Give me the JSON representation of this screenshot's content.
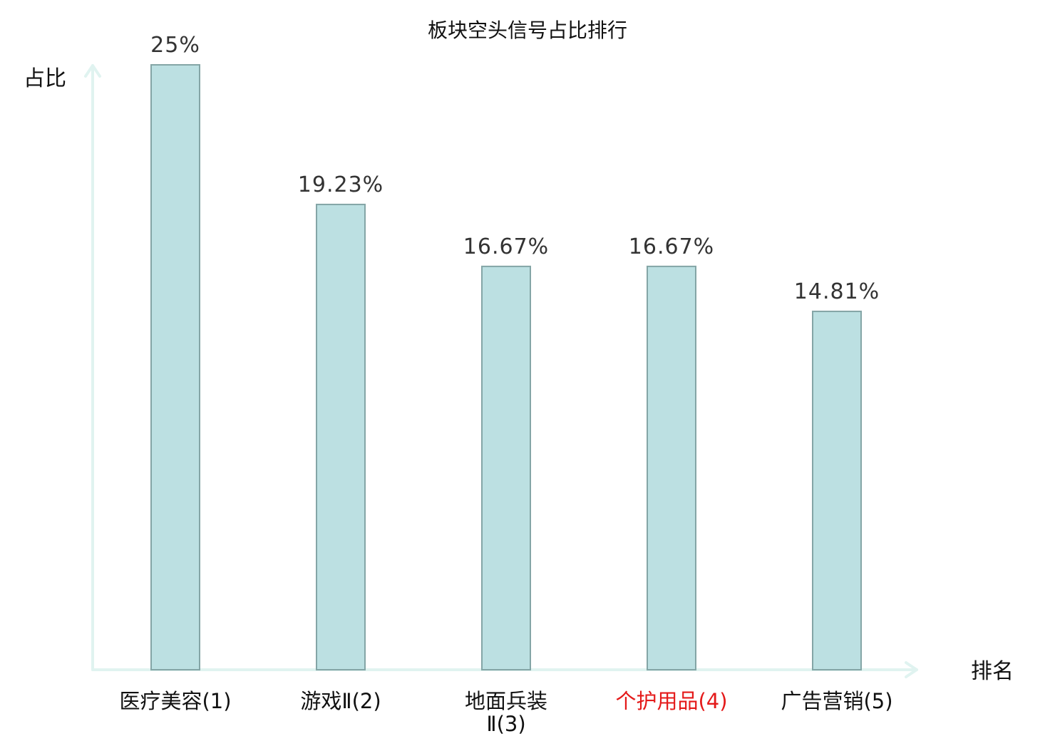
{
  "chart_data": {
    "type": "bar",
    "title": "板块空头信号占比排行",
    "xlabel": "排名",
    "ylabel": "占比",
    "categories": [
      [
        "医疗美容(1)"
      ],
      [
        "游戏Ⅱ(2)"
      ],
      [
        "地面兵装",
        "Ⅱ(3)"
      ],
      [
        "个护用品(4)"
      ],
      [
        "广告营销(5)"
      ]
    ],
    "values": [
      25,
      19.23,
      16.67,
      16.67,
      14.81
    ],
    "value_labels": [
      "25%",
      "19.23%",
      "16.67%",
      "16.67%",
      "14.81%"
    ],
    "highlight_index": 3,
    "ylim": [
      0,
      25
    ],
    "grid": false,
    "legend": "none",
    "colors": {
      "bar_fill": "#bce0e2",
      "bar_stroke": "#84a5a6",
      "axis": "#e0f3f0",
      "highlight": "#e41a1a",
      "text": "#111111",
      "value_text": "#333333"
    }
  }
}
